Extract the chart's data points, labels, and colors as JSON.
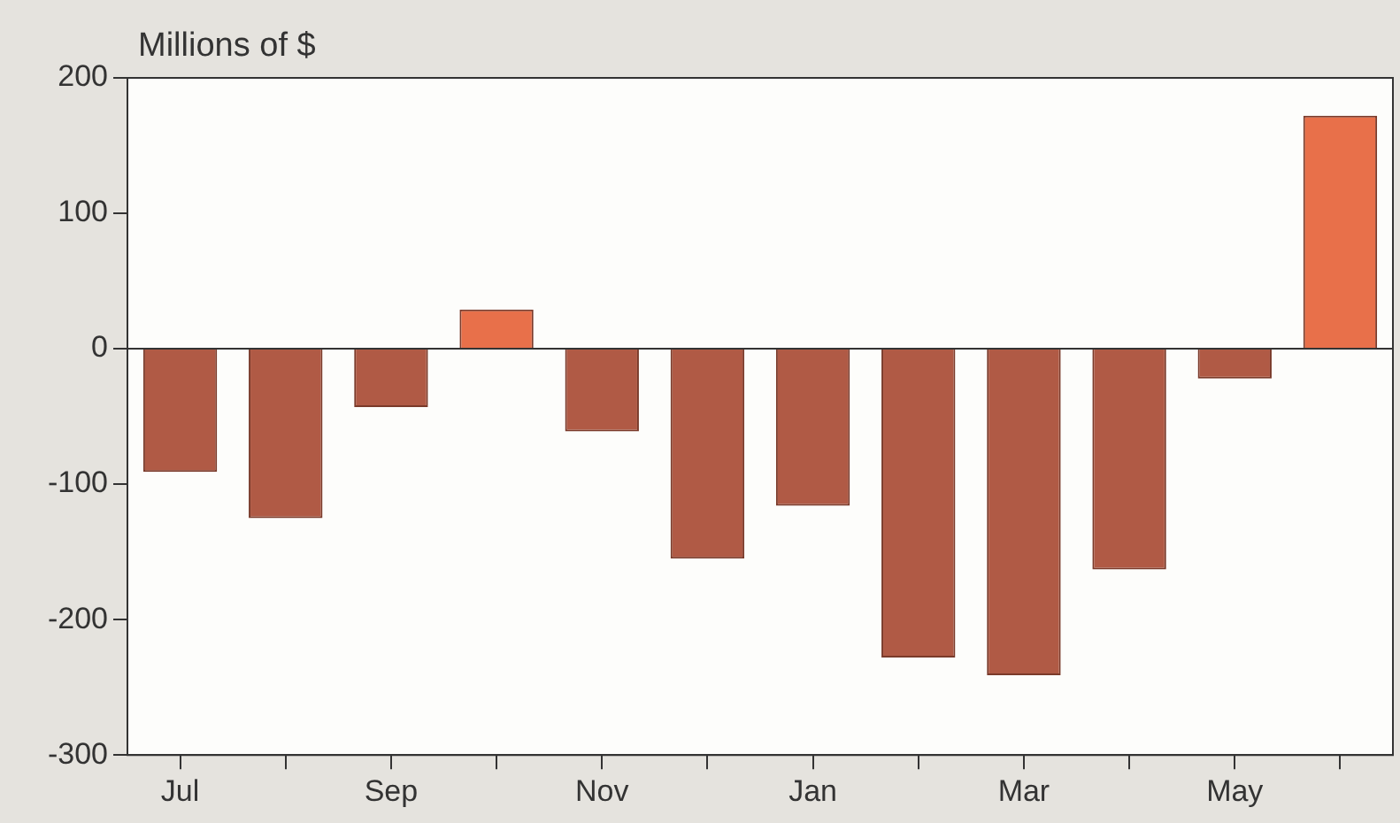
{
  "chart_data": {
    "type": "bar",
    "title": "Millions of $",
    "categories": [
      "Jul",
      null,
      "Sep",
      null,
      "Nov",
      null,
      "Jan",
      null,
      "Mar",
      null,
      "May",
      null
    ],
    "values": [
      -91,
      -125,
      -43,
      29,
      -61,
      -155,
      -116,
      -228,
      -241,
      -163,
      -22,
      172
    ],
    "colors": [
      "#b05a45",
      "#b05a45",
      "#b05a45",
      "#e8704a",
      "#b05a45",
      "#b05a45",
      "#b05a45",
      "#b05a45",
      "#b05a45",
      "#b05a45",
      "#b05a45",
      "#e8704a"
    ],
    "ylim": [
      -300,
      200
    ],
    "yticks": [
      -300,
      -200,
      -100,
      0,
      100,
      200
    ],
    "ref_lines": [
      {
        "axis": "y",
        "value": 0
      }
    ],
    "legend": false
  }
}
